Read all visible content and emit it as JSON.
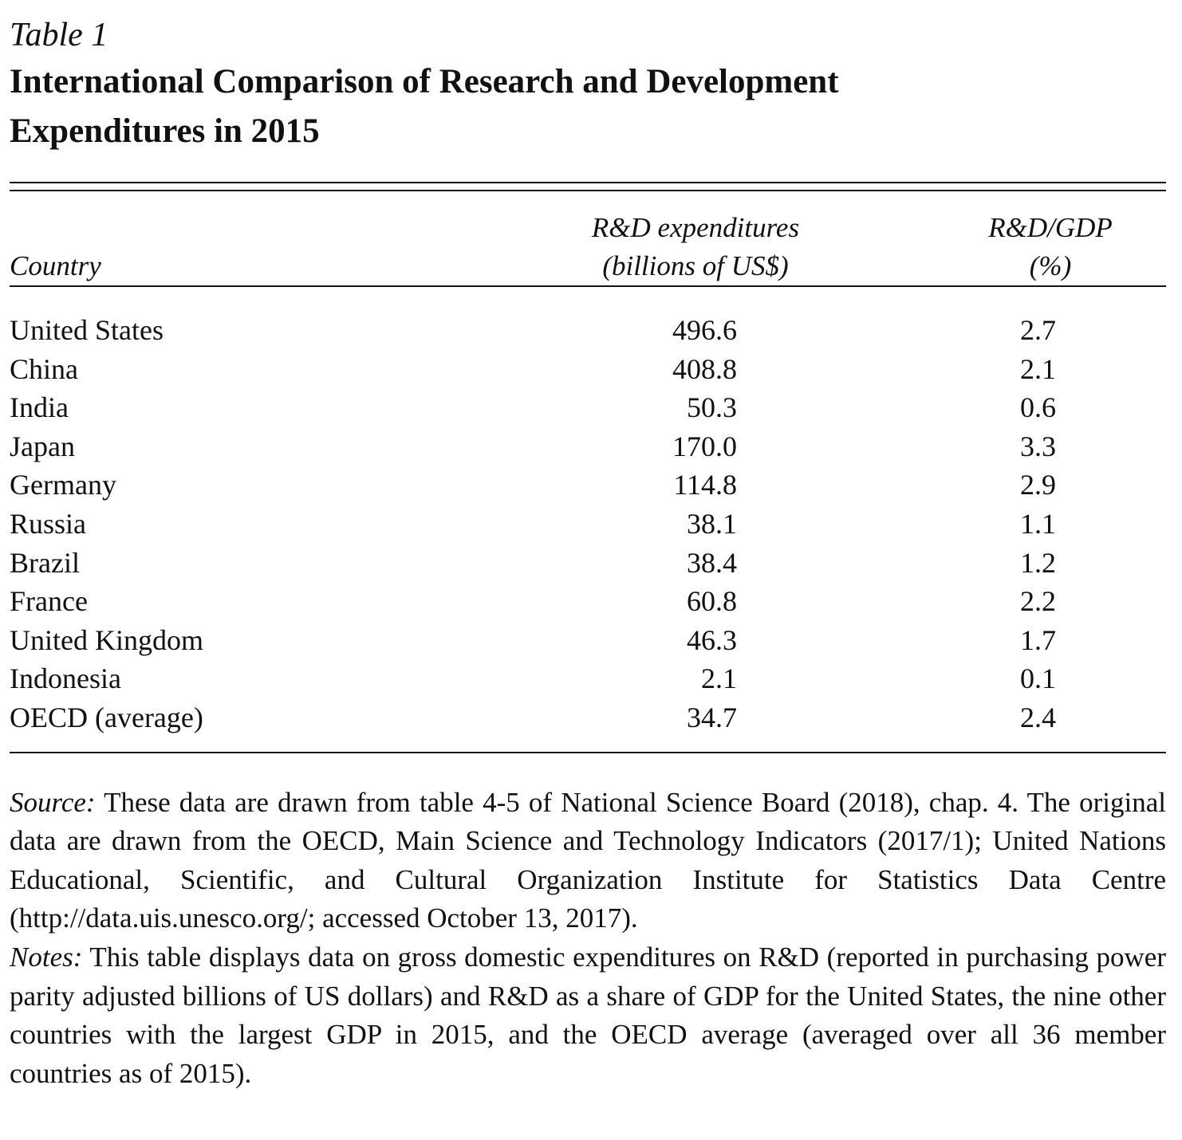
{
  "table": {
    "label": "Table 1",
    "title_line1": "International Comparison of Research and Development",
    "title_line2": "Expenditures in 2015",
    "headers": {
      "country": "Country",
      "expenditures_line1": "R&D expenditures",
      "expenditures_line2": "(billions of US$)",
      "gdp_line1": "R&D/GDP",
      "gdp_line2": "(%)"
    },
    "rows": [
      {
        "country": "United States",
        "expenditures": "496.6",
        "gdp_share": "2.7"
      },
      {
        "country": "China",
        "expenditures": "408.8",
        "gdp_share": "2.1"
      },
      {
        "country": "India",
        "expenditures": "50.3",
        "gdp_share": "0.6"
      },
      {
        "country": "Japan",
        "expenditures": "170.0",
        "gdp_share": "3.3"
      },
      {
        "country": "Germany",
        "expenditures": "114.8",
        "gdp_share": "2.9"
      },
      {
        "country": "Russia",
        "expenditures": "38.1",
        "gdp_share": "1.1"
      },
      {
        "country": "Brazil",
        "expenditures": "38.4",
        "gdp_share": "1.2"
      },
      {
        "country": "France",
        "expenditures": "60.8",
        "gdp_share": "2.2"
      },
      {
        "country": "United Kingdom",
        "expenditures": "46.3",
        "gdp_share": "1.7"
      },
      {
        "country": "Indonesia",
        "expenditures": "2.1",
        "gdp_share": "0.1"
      },
      {
        "country": "OECD (average)",
        "expenditures": "34.7",
        "gdp_share": "2.4"
      }
    ]
  },
  "footnotes": {
    "source_label": "Source:",
    "source_text": " These data are drawn from table 4-5 of National Science Board (2018), chap. 4. The original data are drawn from the OECD, Main Science and Technology Indicators (2017/1); United Nations Educational, Scientific, and Cultural Organization Institute for Statistics Data Centre (http://data.uis.unesco.org/; accessed October 13, 2017).",
    "notes_label": "Notes:",
    "notes_text": " This table displays data on gross domestic expenditures on R&D (reported in purchasing power parity adjusted billions of US dollars) and R&D as a share of GDP for the United States, the nine other countries with the largest GDP in 2015, and the OECD average (averaged over all 36 member countries as of 2015)."
  }
}
